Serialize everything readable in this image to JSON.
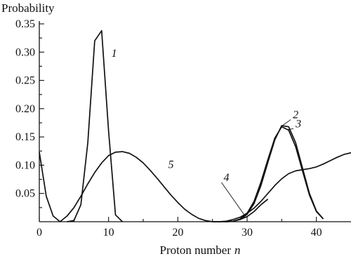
{
  "chart_data": {
    "type": "line",
    "title": "",
    "xlabel": "Proton number",
    "xlabel_var": "n",
    "ylabel": "Probability",
    "xlim": [
      0,
      45
    ],
    "ylim": [
      0,
      0.355
    ],
    "x_ticks": [
      0,
      10,
      20,
      30,
      40
    ],
    "x_tick_labels": [
      "0",
      "10",
      "20",
      "30",
      "40"
    ],
    "y_ticks": [
      0.05,
      0.1,
      0.15,
      0.2,
      0.25,
      0.3,
      0.35
    ],
    "y_tick_labels": [
      "0.05",
      "0.10",
      "0.15",
      "0.20",
      "0.25",
      "0.30",
      "0.35"
    ],
    "grid": false,
    "legend": "none",
    "series": [
      {
        "name": "1",
        "x": [
          4,
          5,
          6,
          7,
          8,
          9,
          10,
          11,
          12
        ],
        "y": [
          0.0,
          0.002,
          0.03,
          0.14,
          0.32,
          0.338,
          0.16,
          0.012,
          0.0
        ]
      },
      {
        "name": "2",
        "x": [
          27,
          28,
          29,
          30,
          31,
          32,
          33,
          34,
          35,
          36,
          37,
          38,
          39,
          40,
          41
        ],
        "y": [
          0.0,
          0.001,
          0.004,
          0.013,
          0.032,
          0.064,
          0.105,
          0.145,
          0.17,
          0.168,
          0.14,
          0.095,
          0.05,
          0.019,
          0.005
        ]
      },
      {
        "name": "3",
        "x": [
          27,
          28,
          29,
          30,
          31,
          32,
          33,
          34,
          35,
          36,
          37,
          38,
          39,
          40,
          41
        ],
        "y": [
          0.0,
          0.001,
          0.005,
          0.015,
          0.036,
          0.07,
          0.11,
          0.148,
          0.168,
          0.162,
          0.133,
          0.09,
          0.047,
          0.018,
          0.005
        ]
      },
      {
        "name": "4",
        "x": [
          25,
          26,
          27,
          28,
          29,
          30,
          31,
          32,
          33,
          34,
          35,
          36,
          37,
          38,
          39,
          40,
          41,
          42,
          43,
          44,
          45
        ],
        "y": [
          0.0,
          0.0,
          0.001,
          0.004,
          0.008,
          0.015,
          0.024,
          0.036,
          0.05,
          0.064,
          0.076,
          0.085,
          0.09,
          0.092,
          0.094,
          0.097,
          0.102,
          0.108,
          0.114,
          0.119,
          0.122
        ]
      },
      {
        "name": "5",
        "x": [
          0,
          1,
          2,
          3,
          4,
          5,
          6,
          7,
          8,
          9,
          10,
          11,
          12,
          13,
          14,
          15,
          16,
          17,
          18,
          19,
          20,
          21,
          22,
          23,
          24,
          25,
          26,
          27,
          28,
          29,
          30,
          31,
          32,
          33
        ],
        "y": [
          0.123,
          0.045,
          0.01,
          0.0,
          0.01,
          0.025,
          0.045,
          0.067,
          0.087,
          0.104,
          0.117,
          0.123,
          0.124,
          0.121,
          0.114,
          0.104,
          0.091,
          0.077,
          0.062,
          0.047,
          0.034,
          0.022,
          0.013,
          0.006,
          0.002,
          0.0,
          0.0,
          0.0,
          0.001,
          0.004,
          0.009,
          0.018,
          0.03,
          0.04
        ]
      }
    ],
    "annotations": [
      {
        "text": "1",
        "x": 10.4,
        "y": 0.292,
        "leader": false
      },
      {
        "text": "2",
        "x": 36.6,
        "y": 0.183,
        "leader_to": [
          35.2,
          0.171
        ]
      },
      {
        "text": "3",
        "x": 37.0,
        "y": 0.167,
        "leader_to": [
          35.8,
          0.163
        ]
      },
      {
        "text": "4",
        "x": 26.6,
        "y": 0.072,
        "leader_to": [
          29.6,
          0.012
        ]
      },
      {
        "text": "5",
        "x": 18.6,
        "y": 0.095,
        "leader": false
      }
    ]
  }
}
